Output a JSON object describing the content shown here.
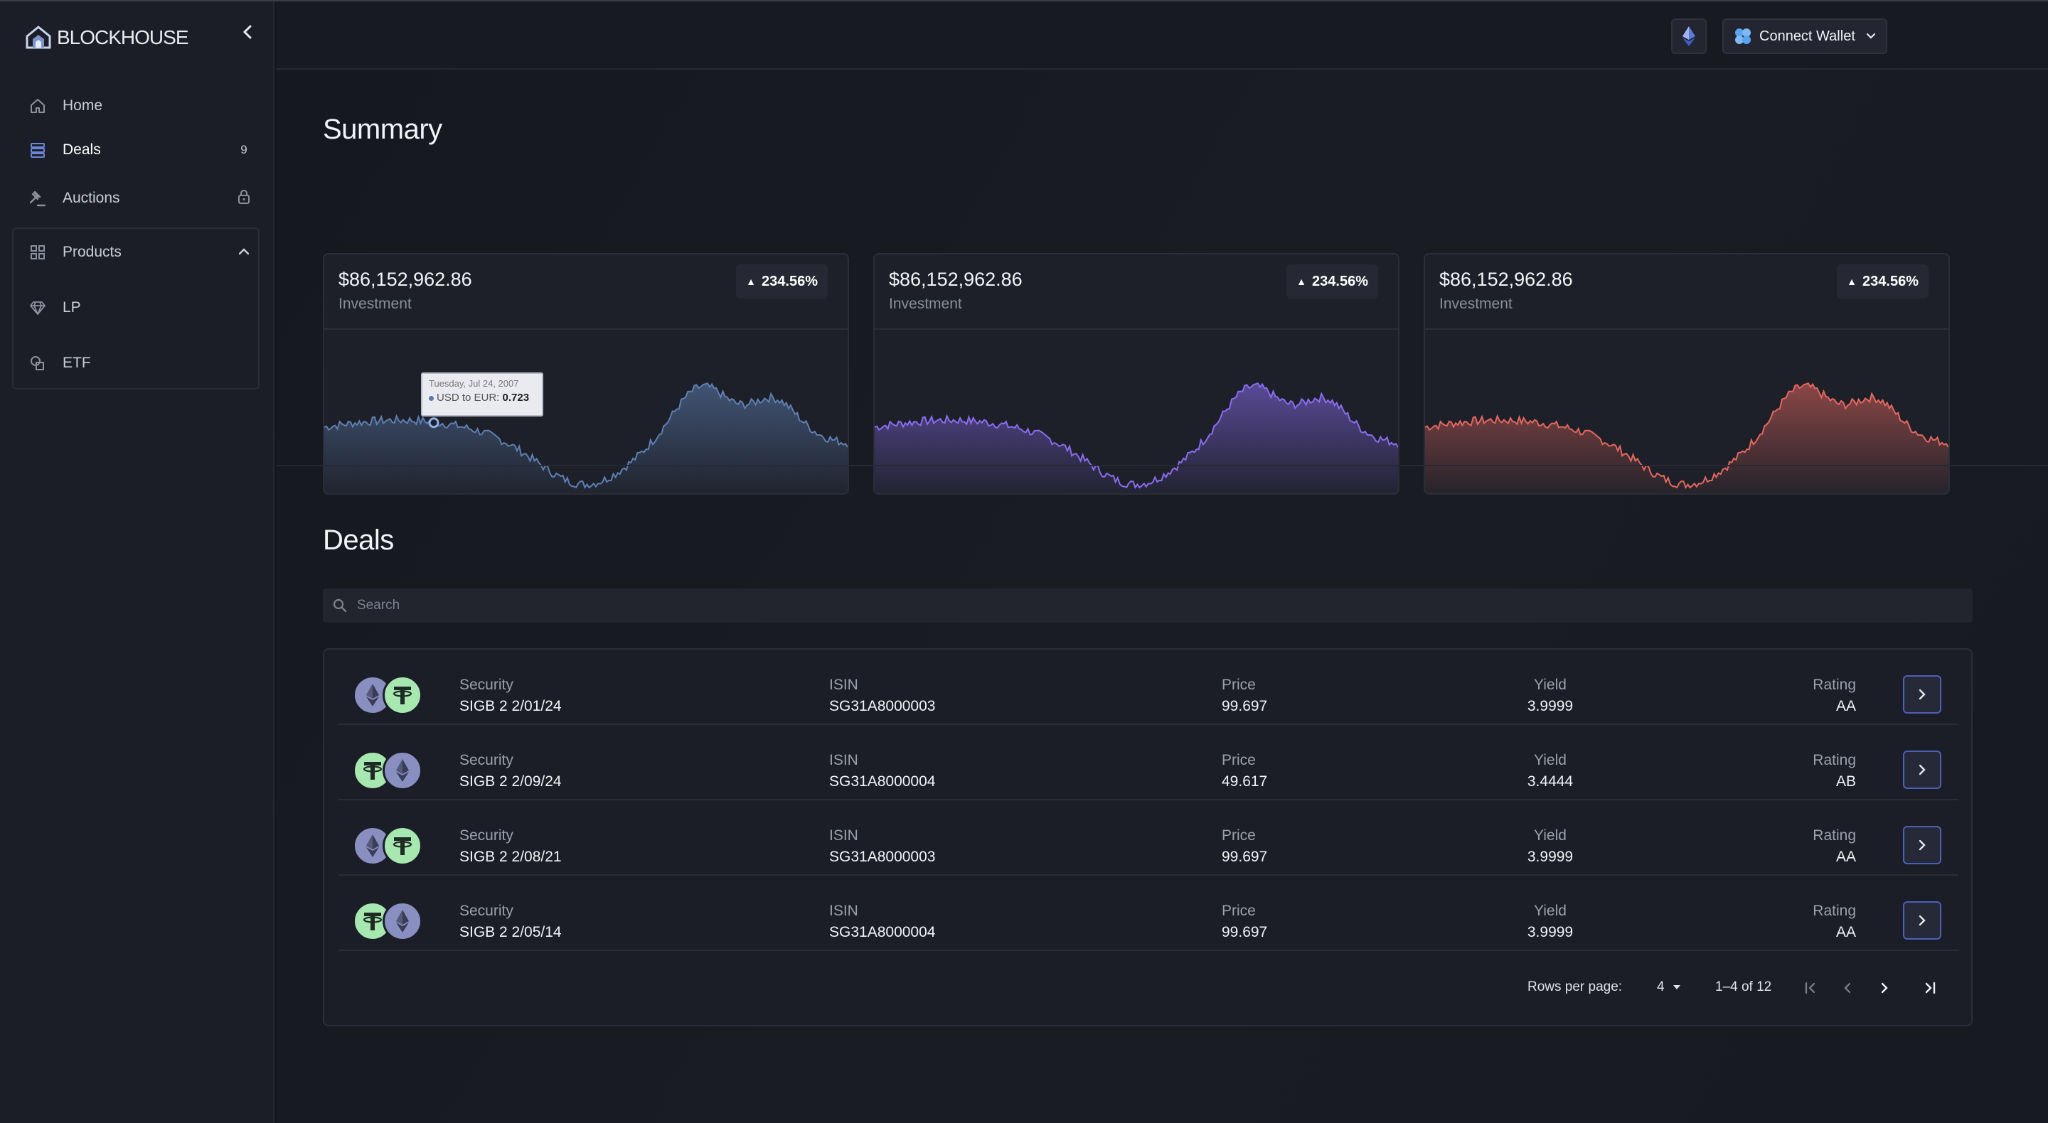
{
  "app": {
    "name": "BLOCKHOUSE"
  },
  "sidebar": {
    "items": [
      {
        "label": "Home",
        "icon": "home-icon"
      },
      {
        "label": "Deals",
        "icon": "deals-icon",
        "badge": "9"
      },
      {
        "label": "Auctions",
        "icon": "gavel-icon",
        "lock_icon": "lock-icon"
      },
      {
        "label": "Products",
        "icon": "grid-icon",
        "expanded": true,
        "children": [
          {
            "label": "LP",
            "icon": "diamond-icon"
          },
          {
            "label": "ETF",
            "icon": "shapes-icon"
          }
        ]
      }
    ]
  },
  "header": {
    "network_icon": "ethereum-icon",
    "wallet_button": "Connect Wallet"
  },
  "summary": {
    "title": "Summary",
    "cards": [
      {
        "amount": "$86,152,962.86",
        "label": "Investment",
        "change": "234.56%",
        "color": "#5f7fb2"
      },
      {
        "amount": "$86,152,962.86",
        "label": "Investment",
        "change": "234.56%",
        "color": "#8b6cf0"
      },
      {
        "amount": "$86,152,962.86",
        "label": "Investment",
        "change": "234.56%",
        "color": "#e5675e"
      }
    ],
    "tooltip": {
      "date": "Tuesday, Jul 24, 2007",
      "series": "USD to EUR:",
      "value": "0.723"
    }
  },
  "deals": {
    "title": "Deals",
    "search_placeholder": "Search",
    "columns": {
      "security": "Security",
      "isin": "ISIN",
      "price": "Price",
      "yield": "Yield",
      "rating": "Rating"
    },
    "rows": [
      {
        "coins": [
          "ethereum",
          "tether"
        ],
        "security": "SIGB 2 2/01/24",
        "isin": "SG31A8000003",
        "price": "99.697",
        "yield": "3.9999",
        "rating": "AA"
      },
      {
        "coins": [
          "tether",
          "ethereum"
        ],
        "security": "SIGB 2 2/09/24",
        "isin": "SG31A8000004",
        "price": "49.617",
        "yield": "3.4444",
        "rating": "AB"
      },
      {
        "coins": [
          "ethereum",
          "tether"
        ],
        "security": "SIGB 2 2/08/21",
        "isin": "SG31A8000003",
        "price": "99.697",
        "yield": "3.9999",
        "rating": "AA"
      },
      {
        "coins": [
          "tether",
          "ethereum"
        ],
        "security": "SIGB 2 2/05/14",
        "isin": "SG31A8000004",
        "price": "99.697",
        "yield": "3.9999",
        "rating": "AA"
      }
    ],
    "pagination": {
      "rows_per_page_label": "Rows per page:",
      "rows_per_page": "4",
      "range": "1–4 of 12"
    }
  },
  "colors": {
    "accent": "#4e5fb8",
    "eth_coin": "#8a8fc2",
    "usdt_coin": "#a6e8b0"
  }
}
